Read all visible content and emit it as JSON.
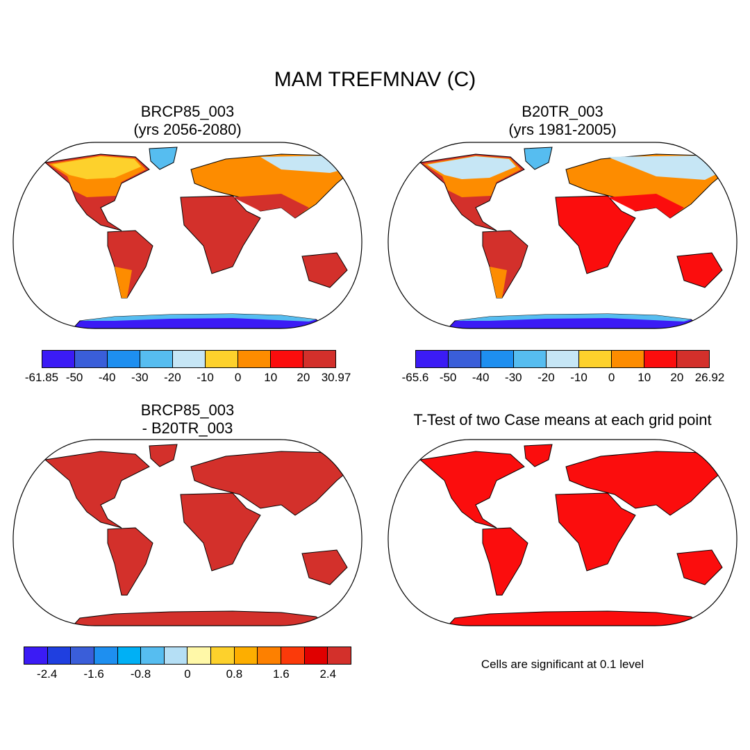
{
  "title": "MAM TREFMNAV (C)",
  "panels": {
    "top_left": {
      "title_line1": "BRCP85_003",
      "title_line2": "(yrs 2056-2080)",
      "colorbar": {
        "colors": [
          "#3b1bf5",
          "#3a5ed9",
          "#1e8ff0",
          "#56bdf0",
          "#c6e6f5",
          "#fdd12c",
          "#fd8c00",
          "#fb0d0d",
          "#d3302b"
        ],
        "labels": [
          "-61.85",
          "-50",
          "-40",
          "-30",
          "-20",
          "-10",
          "0",
          "10",
          "20",
          "30.97"
        ]
      }
    },
    "top_right": {
      "title_line1": "B20TR_003",
      "title_line2": "(yrs 1981-2005)",
      "colorbar": {
        "colors": [
          "#3b1bf5",
          "#3a5ed9",
          "#1e8ff0",
          "#56bdf0",
          "#c6e6f5",
          "#fdd12c",
          "#fd8c00",
          "#fb0d0d",
          "#d3302b"
        ],
        "labels": [
          "-65.6",
          "-50",
          "-40",
          "-30",
          "-20",
          "-10",
          "0",
          "10",
          "20",
          "26.92"
        ]
      }
    },
    "bottom_left": {
      "title_line1": "BRCP85_003",
      "title_line2": "- B20TR_003",
      "colorbar": {
        "colors": [
          "#3b1bf5",
          "#1f3fe0",
          "#3a5ed9",
          "#1e8ff0",
          "#00b0f5",
          "#56bdf0",
          "#b5dff5",
          "#fff8a8",
          "#fdd12c",
          "#fdae00",
          "#fd8000",
          "#fb3a0a",
          "#e00000",
          "#d3302b"
        ],
        "labels": [
          "-2.4",
          "-1.6",
          "-0.8",
          "0",
          "0.8",
          "1.6",
          "2.4"
        ]
      }
    },
    "bottom_right": {
      "title_line1": "T-Test of two Case means at each grid point",
      "note": "Cells are significant at 0.1 level"
    }
  },
  "colors": {
    "land_deep_red": "#d3302b",
    "land_red": "#fb0d0d",
    "land_orange": "#fd8c00",
    "land_yellow": "#fdd12c",
    "land_light_blue": "#c6e6f5",
    "land_sky_blue": "#56bdf0",
    "land_blue": "#1e8ff0",
    "land_violet": "#3b1bf5"
  }
}
